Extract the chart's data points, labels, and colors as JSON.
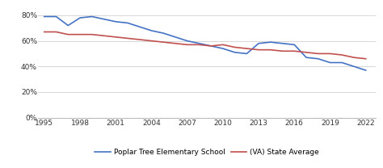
{
  "school_years": [
    1995,
    1996,
    1997,
    1998,
    1999,
    2000,
    2001,
    2002,
    2003,
    2004,
    2005,
    2006,
    2007,
    2008,
    2009,
    2010,
    2011,
    2012,
    2013,
    2014,
    2015,
    2016,
    2017,
    2018,
    2019,
    2020,
    2021,
    2022
  ],
  "school_values": [
    0.79,
    0.79,
    0.72,
    0.78,
    0.79,
    0.77,
    0.75,
    0.74,
    0.71,
    0.68,
    0.66,
    0.63,
    0.6,
    0.58,
    0.56,
    0.54,
    0.51,
    0.5,
    0.58,
    0.59,
    0.58,
    0.57,
    0.47,
    0.46,
    0.43,
    0.43,
    0.4,
    0.37
  ],
  "state_years": [
    1995,
    1996,
    1997,
    1998,
    1999,
    2000,
    2001,
    2002,
    2003,
    2004,
    2005,
    2006,
    2007,
    2008,
    2009,
    2010,
    2011,
    2012,
    2013,
    2014,
    2015,
    2016,
    2017,
    2018,
    2019,
    2020,
    2021,
    2022
  ],
  "state_values": [
    0.67,
    0.67,
    0.65,
    0.65,
    0.65,
    0.64,
    0.63,
    0.62,
    0.61,
    0.6,
    0.59,
    0.58,
    0.57,
    0.57,
    0.56,
    0.57,
    0.55,
    0.54,
    0.53,
    0.53,
    0.52,
    0.52,
    0.51,
    0.5,
    0.5,
    0.49,
    0.47,
    0.46
  ],
  "school_color": "#4472C4",
  "state_color": "#C0504D",
  "school_label": "Poplar Tree Elementary School",
  "state_label": "(VA) State Average",
  "xticks": [
    1995,
    1998,
    2001,
    2004,
    2007,
    2010,
    2013,
    2016,
    2019,
    2022
  ],
  "yticks": [
    0.0,
    0.2,
    0.4,
    0.6,
    0.8
  ],
  "ylim": [
    0.0,
    0.88
  ],
  "xlim": [
    1994.5,
    2022.8
  ],
  "background_color": "#ffffff",
  "grid_color": "#d0d0d0",
  "tick_fontsize": 6.5,
  "legend_fontsize": 6.5
}
